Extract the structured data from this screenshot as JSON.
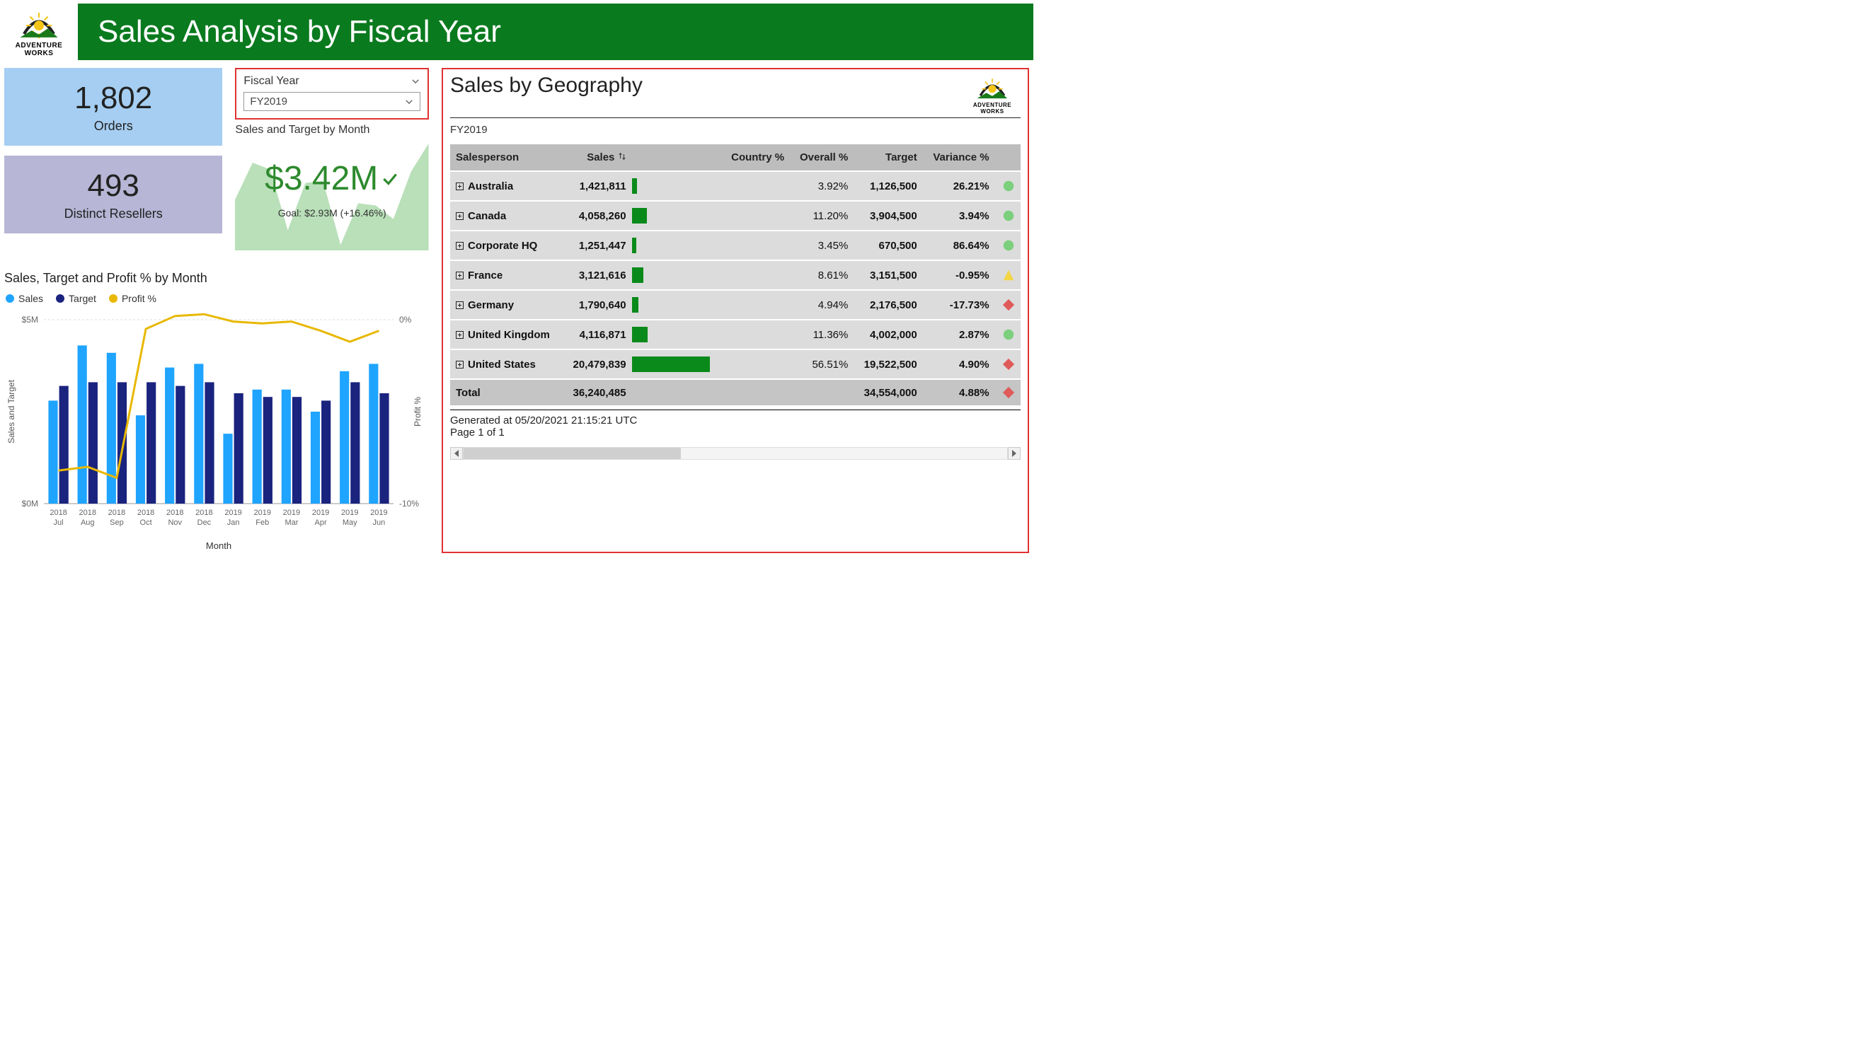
{
  "brand": {
    "name_line1": "ADVENTURE",
    "name_line2": "WORKS"
  },
  "header": {
    "title": "Sales Analysis by Fiscal Year",
    "bg": "#0a7a1e",
    "fg": "#ffffff"
  },
  "cards": {
    "orders": {
      "value": "1,802",
      "label": "Orders",
      "bg": "#a6cef2"
    },
    "resellers": {
      "value": "493",
      "label": "Distinct Resellers",
      "bg": "#b7b6d6"
    }
  },
  "slicer": {
    "title": "Fiscal Year",
    "selected": "FY2019",
    "border": "#e03131"
  },
  "kpi": {
    "title": "Sales and Target by Month",
    "value": "$3.42M",
    "goal": "Goal: $2.93M (+16.46%)",
    "value_color": "#2d8a2d",
    "spark_fill": "#b9e0b9",
    "spark_points": [
      0.45,
      0.78,
      0.72,
      0.18,
      0.6,
      0.62,
      0.05,
      0.42,
      0.4,
      0.28,
      0.7,
      0.95
    ]
  },
  "combo": {
    "title": "Sales, Target and Profit % by Month",
    "legend": {
      "sales": "Sales",
      "target": "Target",
      "profit": "Profit %"
    },
    "colors": {
      "sales": "#1fa4ff",
      "target": "#1a237e",
      "profit": "#e8b800",
      "grid": "#dddddd",
      "axis_text": "#666666"
    },
    "y_left": {
      "label": "Sales and Target",
      "min": 0,
      "max": 5,
      "ticks": [
        "$0M",
        "$5M"
      ]
    },
    "y_right": {
      "label": "Profit %",
      "min": -10,
      "max": 0,
      "ticks": [
        "-10%",
        "0%"
      ]
    },
    "x_label": "Month",
    "months": [
      "2018 Jul",
      "2018 Aug",
      "2018 Sep",
      "2018 Oct",
      "2018 Nov",
      "2018 Dec",
      "2019 Jan",
      "2019 Feb",
      "2019 Mar",
      "2019 Apr",
      "2019 May",
      "2019 Jun"
    ],
    "sales": [
      2.8,
      4.3,
      4.1,
      2.4,
      3.7,
      3.8,
      1.9,
      3.1,
      3.1,
      2.5,
      3.6,
      3.8
    ],
    "target": [
      3.2,
      3.3,
      3.3,
      3.3,
      3.2,
      3.3,
      3.0,
      2.9,
      2.9,
      2.8,
      3.3,
      3.0
    ],
    "profit_pct": [
      -8.2,
      -8.0,
      -8.6,
      -0.5,
      0.2,
      0.3,
      -0.1,
      -0.2,
      -0.1,
      -0.6,
      -1.2,
      -0.6
    ]
  },
  "geo": {
    "title": "Sales by Geography",
    "subtitle": "FY2019",
    "border": "#e03131",
    "columns": [
      "Salesperson",
      "Sales",
      "",
      "Country %",
      "Overall %",
      "Target",
      "Variance %",
      ""
    ],
    "bar_color": "#0a8a1a",
    "bar_max": 20479839,
    "indicator_colors": {
      "green": "#7ccf7c",
      "yellow": "#f4d544",
      "red": "#e05a5a"
    },
    "rows": [
      {
        "name": "Australia",
        "sales": "1,421,811",
        "sales_num": 1421811,
        "country": "",
        "overall": "3.92%",
        "target": "1,126,500",
        "variance": "26.21%",
        "neg": false,
        "ind": "green",
        "shape": "circle"
      },
      {
        "name": "Canada",
        "sales": "4,058,260",
        "sales_num": 4058260,
        "country": "",
        "overall": "11.20%",
        "target": "3,904,500",
        "variance": "3.94%",
        "neg": false,
        "ind": "green",
        "shape": "circle"
      },
      {
        "name": "Corporate HQ",
        "sales": "1,251,447",
        "sales_num": 1251447,
        "country": "",
        "overall": "3.45%",
        "target": "670,500",
        "variance": "86.64%",
        "neg": false,
        "ind": "green",
        "shape": "circle"
      },
      {
        "name": "France",
        "sales": "3,121,616",
        "sales_num": 3121616,
        "country": "",
        "overall": "8.61%",
        "target": "3,151,500",
        "variance": "-0.95%",
        "neg": true,
        "ind": "yellow",
        "shape": "triangle"
      },
      {
        "name": "Germany",
        "sales": "1,790,640",
        "sales_num": 1790640,
        "country": "",
        "overall": "4.94%",
        "target": "2,176,500",
        "variance": "-17.73%",
        "neg": true,
        "ind": "red",
        "shape": "diamond"
      },
      {
        "name": "United Kingdom",
        "sales": "4,116,871",
        "sales_num": 4116871,
        "country": "",
        "overall": "11.36%",
        "target": "4,002,000",
        "variance": "2.87%",
        "neg": false,
        "ind": "green",
        "shape": "circle"
      },
      {
        "name": "United States",
        "sales": "20,479,839",
        "sales_num": 20479839,
        "country": "",
        "overall": "56.51%",
        "target": "19,522,500",
        "variance": "4.90%",
        "neg": false,
        "ind": "red",
        "shape": "diamond"
      }
    ],
    "total": {
      "name": "Total",
      "sales": "36,240,485",
      "target": "34,554,000",
      "variance": "4.88%",
      "ind": "red",
      "shape": "diamond"
    },
    "footer_line1": "Generated at 05/20/2021 21:15:21 UTC",
    "footer_line2": "Page 1 of 1",
    "scroll_thumb_pct": 40
  }
}
